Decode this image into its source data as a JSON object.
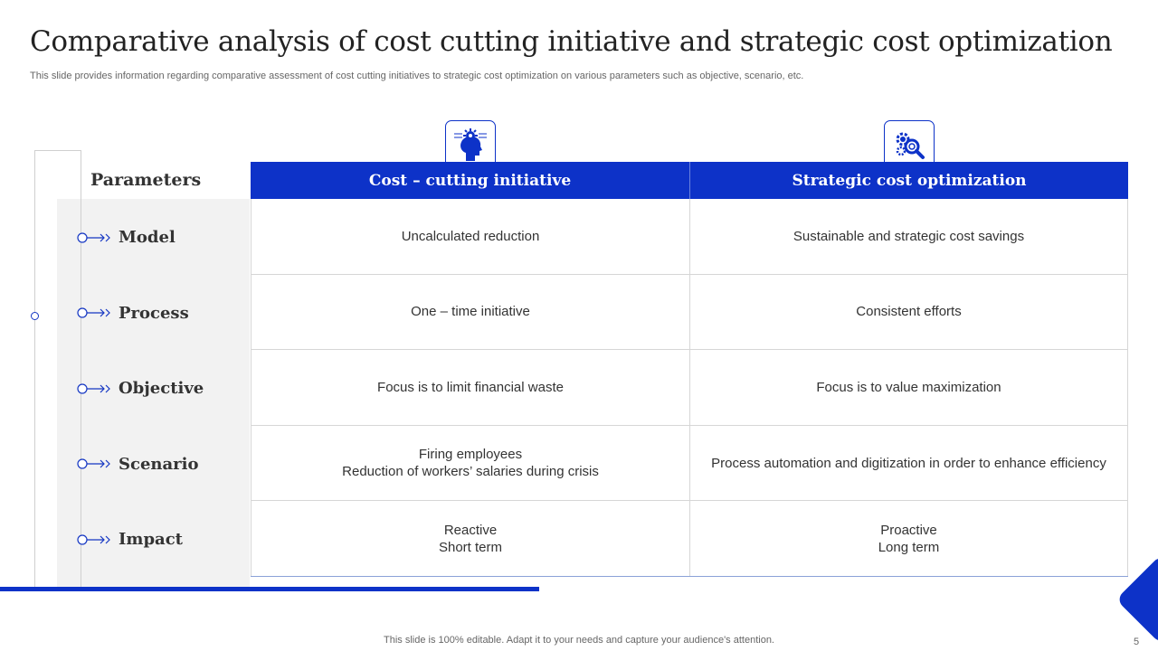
{
  "slide": {
    "title": "Comparative analysis of cost cutting initiative and strategic cost optimization",
    "subtitle": "This slide provides information regarding comparative assessment of cost cutting initiatives to strategic cost optimization on various parameters such as objective, scenario, etc.",
    "footer": "This slide is 100% editable. Adapt it to your needs and capture your audience's attention.",
    "page_number": "5"
  },
  "colors": {
    "accent": "#0d32c8",
    "panel": "#f2f2f2",
    "text": "#333333"
  },
  "table": {
    "parameters_header": "Parameters",
    "columns": [
      {
        "label": "Cost – cutting initiative",
        "icon": "brain-gear-icon"
      },
      {
        "label": "Strategic cost optimization",
        "icon": "gear-magnifier-icon"
      }
    ],
    "rows": [
      {
        "param": "Model",
        "cells": [
          [
            "Uncalculated reduction"
          ],
          [
            "Sustainable and strategic cost savings"
          ]
        ]
      },
      {
        "param": "Process",
        "cells": [
          [
            "One – time initiative"
          ],
          [
            "Consistent efforts"
          ]
        ]
      },
      {
        "param": "Objective",
        "cells": [
          [
            "Focus is to limit financial waste"
          ],
          [
            "Focus is to value maximization"
          ]
        ]
      },
      {
        "param": "Scenario",
        "cells": [
          [
            "Firing employees",
            "Reduction of workers’ salaries during crisis"
          ],
          [
            "Process automation and digitization in order to enhance efficiency"
          ]
        ]
      },
      {
        "param": "Impact",
        "cells": [
          [
            "Reactive",
            "Short term"
          ],
          [
            "Proactive",
            "Long term"
          ]
        ]
      }
    ]
  }
}
